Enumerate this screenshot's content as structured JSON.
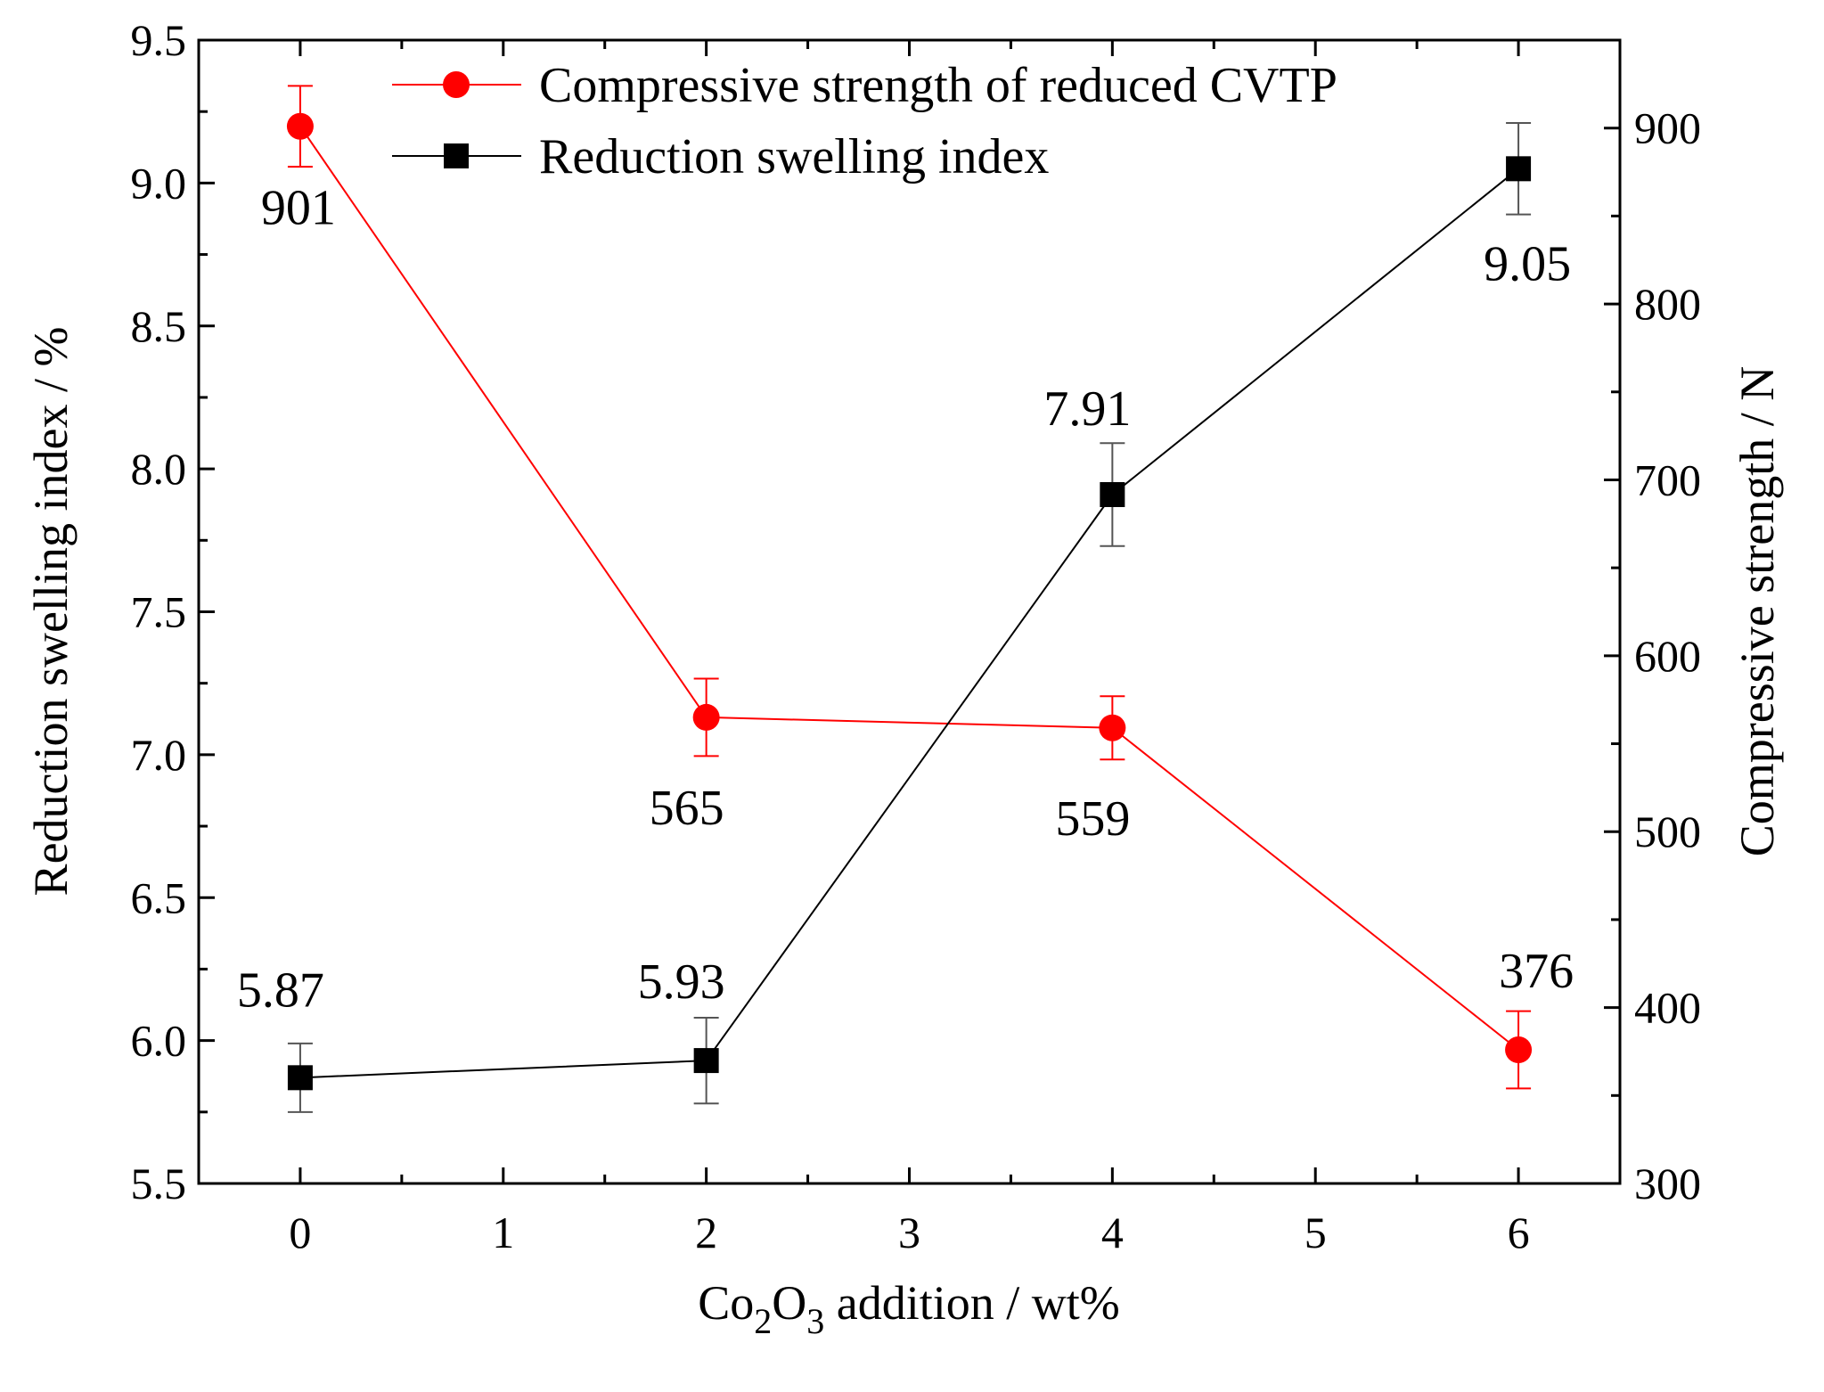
{
  "chart_data": {
    "type": "line",
    "xlabel_parts": [
      "Co",
      "2",
      "O",
      "3",
      " addition / wt%"
    ],
    "ylabel_left": "Reduction swelling index / %",
    "ylabel_right": "Compressive strength / N",
    "xlim": [
      -0.5,
      6.5
    ],
    "ylim_left": [
      5.5,
      9.5
    ],
    "ylim_right": [
      300,
      950
    ],
    "x_ticks": [
      "0",
      "1",
      "2",
      "3",
      "4",
      "5",
      "6"
    ],
    "y_left_ticks": [
      "5.5",
      "6.0",
      "6.5",
      "7.0",
      "7.5",
      "8.0",
      "8.5",
      "9.0",
      "9.5"
    ],
    "y_right_ticks": [
      "300",
      "400",
      "500",
      "600",
      "700",
      "800",
      "900"
    ],
    "series": [
      {
        "name": "Compressive strength of reduced CVTP",
        "axis": "right",
        "color": "#ff0000",
        "marker": "circle",
        "x": [
          0,
          2,
          4,
          6
        ],
        "y": [
          901,
          565,
          559,
          376
        ],
        "err": [
          23,
          22,
          18,
          22
        ],
        "labels": [
          "901",
          "565",
          "559",
          "376"
        ]
      },
      {
        "name": "Reduction swelling index",
        "axis": "left",
        "color": "#000000",
        "marker": "square",
        "x": [
          0,
          2,
          4,
          6
        ],
        "y": [
          5.87,
          5.93,
          7.91,
          9.05
        ],
        "err": [
          0.12,
          0.15,
          0.18,
          0.16
        ],
        "labels": [
          "5.87",
          "5.93",
          "7.91",
          "9.05"
        ]
      }
    ]
  }
}
